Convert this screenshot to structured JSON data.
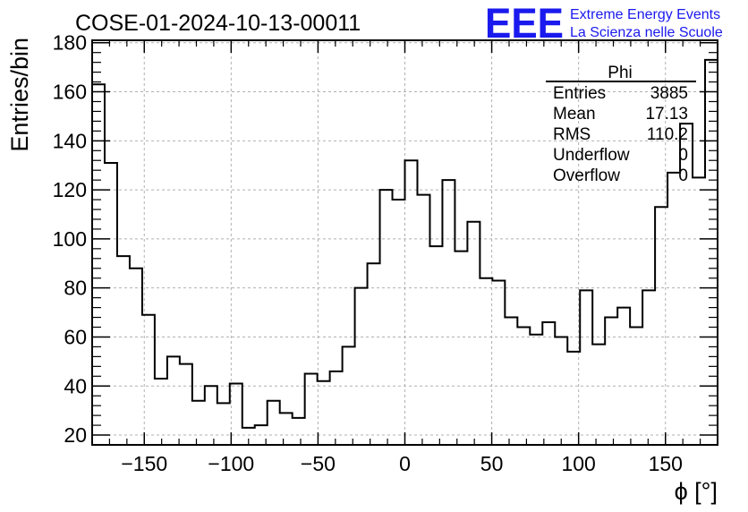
{
  "logo": {
    "text": "EEE",
    "line1": "Extreme Energy Events",
    "line2": "La Scienza nelle Scuole",
    "color": "#1a1aee"
  },
  "stats_box": {
    "title": "Phi",
    "rows": [
      {
        "label": "Entries",
        "value": "3885"
      },
      {
        "label": "Mean",
        "value": "17.13"
      },
      {
        "label": "RMS",
        "value": "110.2"
      },
      {
        "label": "Underflow",
        "value": "0"
      },
      {
        "label": "Overflow",
        "value": "0"
      }
    ]
  },
  "chart_data": {
    "type": "histogram",
    "title": "COSE-01-2024-10-13-00011",
    "xlabel": "ϕ [°]",
    "ylabel": "Entries/bin",
    "xlim": [
      -180,
      180
    ],
    "ylim": [
      16,
      181
    ],
    "bin_width": 7.2,
    "x_ticks": [
      -150,
      -100,
      -50,
      0,
      50,
      100,
      150
    ],
    "x_tick_labels": [
      "−150",
      "−100",
      "−50",
      "0",
      "50",
      "100",
      "150"
    ],
    "y_ticks": [
      20,
      40,
      60,
      80,
      100,
      120,
      140,
      160,
      180
    ],
    "y_tick_labels": [
      "20",
      "40",
      "60",
      "80",
      "100",
      "120",
      "140",
      "160",
      "180"
    ],
    "grid": true,
    "line_color": "#000000",
    "values": [
      163,
      131,
      93,
      88,
      69,
      43,
      52,
      49,
      34,
      40,
      33,
      41,
      23,
      24,
      34,
      29,
      27,
      45,
      42,
      46,
      56,
      80,
      90,
      120,
      116,
      132,
      118,
      97,
      124,
      95,
      107,
      84,
      83,
      68,
      64,
      61,
      66,
      60,
      54,
      79,
      57,
      68,
      72,
      64,
      79,
      113,
      127,
      147,
      125,
      173
    ]
  }
}
